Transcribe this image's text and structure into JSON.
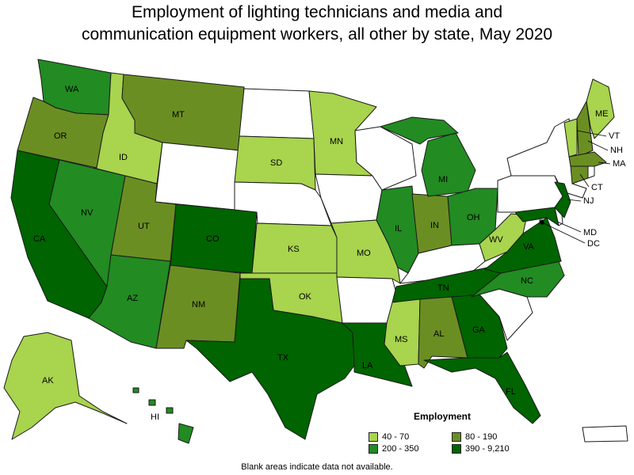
{
  "title_line1": "Employment of lighting technicians and media and",
  "title_line2": "communication equipment workers, all other by state, May 2020",
  "colors": {
    "c1": "#a8d44e",
    "c2": "#6b8e23",
    "c3": "#228b22",
    "c4": "#006400",
    "none": "#ffffff"
  },
  "legend": {
    "title": "Employment",
    "items": [
      {
        "label": "40 - 70",
        "class": "c1"
      },
      {
        "label": "80 - 190",
        "class": "c2"
      },
      {
        "label": "200 - 350",
        "class": "c3"
      },
      {
        "label": "390 - 9,210",
        "class": "c4"
      }
    ]
  },
  "states": {
    "WA": "c3",
    "OR": "c2",
    "CA": "c4",
    "ID": "c1",
    "NV": "c3",
    "MT": "c2",
    "UT": "c2",
    "AZ": "c3",
    "CO": "c4",
    "NM": "c2",
    "SD": "c1",
    "MN": "c1",
    "KS": "c1",
    "OK": "c1",
    "TX": "c4",
    "MO": "c1",
    "IL": "c3",
    "IN": "c2",
    "MI": "c3",
    "OH": "c3",
    "TN": "c4",
    "MS": "c1",
    "AL": "c2",
    "GA": "c4",
    "FL": "c4",
    "LA": "c4",
    "NC": "c3",
    "VA": "c4",
    "WV": "c1",
    "ME": "c1",
    "VT": "c1",
    "NH": "c2",
    "MA": "c2",
    "CT": "c2",
    "NJ": "c4",
    "MD": "c4",
    "DC": "c4",
    "AK": "c1",
    "HI": "c3",
    "WY": "none",
    "ND": "none",
    "NE": "none",
    "IA": "none",
    "WI": "none",
    "AR": "none",
    "KY": "none",
    "SC": "none",
    "PA": "none",
    "NY": "none",
    "DE": "none",
    "RI": "none",
    "PR": "none"
  },
  "state_labels": [
    "WA",
    "OR",
    "CA",
    "ID",
    "NV",
    "MT",
    "UT",
    "AZ",
    "CO",
    "NM",
    "SD",
    "MN",
    "KS",
    "OK",
    "TX",
    "MO",
    "IL",
    "IN",
    "MI",
    "OH",
    "TN",
    "MS",
    "AL",
    "GA",
    "FL",
    "LA",
    "NC",
    "VA",
    "WV",
    "ME",
    "VT",
    "NH",
    "MA",
    "CT",
    "NJ",
    "MD",
    "DC",
    "AK",
    "HI"
  ],
  "note": "Blank areas indicate data not available."
}
